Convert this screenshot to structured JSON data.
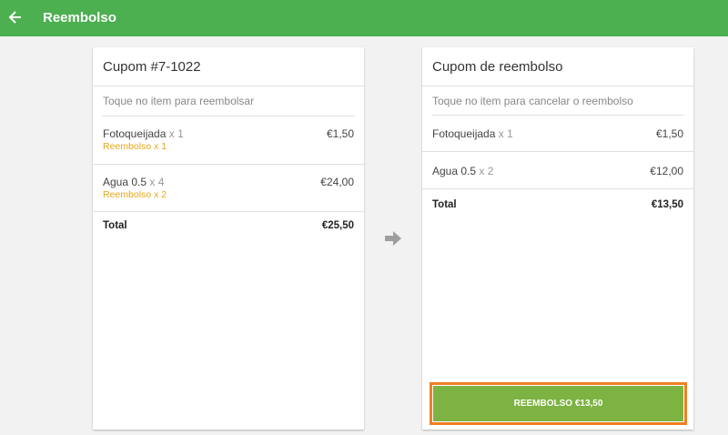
{
  "header": {
    "title": "Reembolso",
    "back_icon": "arrow-left-icon"
  },
  "left": {
    "title": "Cupom #7-1022",
    "hint": "Toque no item para reembolsar",
    "items": [
      {
        "name": "Fotoqueijada",
        "qty": "x 1",
        "price": "€1,50",
        "refund": "Reembolso x 1"
      },
      {
        "name": "Agua 0.5",
        "qty": "x 4",
        "price": "€24,00",
        "refund": "Reembolso x 2"
      }
    ],
    "total_label": "Total",
    "total": "€25,50"
  },
  "right": {
    "title": "Cupom de reembolso",
    "hint": "Toque no item para cancelar o reembolso",
    "items": [
      {
        "name": "Fotoqueijada",
        "qty": "x 1",
        "price": "€1,50"
      },
      {
        "name": "Agua 0.5",
        "qty": "x 2",
        "price": "€12,00"
      }
    ],
    "total_label": "Total",
    "total": "€13,50",
    "button": "REEMBOLSO €13,50"
  },
  "colors": {
    "header": "#4caf50",
    "button": "#7cb342",
    "refund_text": "#e6a817",
    "highlight": "#f07f23"
  }
}
